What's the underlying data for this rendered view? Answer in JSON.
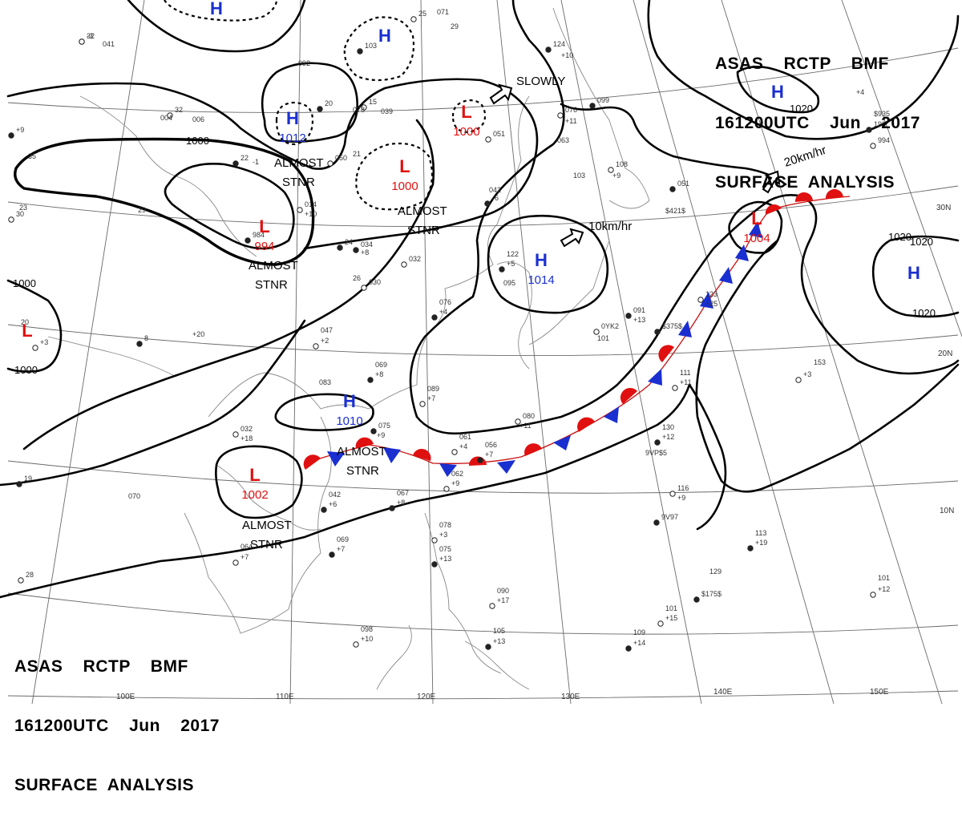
{
  "header": {
    "line1": "ASAS    RCTP    BMF",
    "line2": "161200UTC    Jun    2017",
    "line3": "SURFACE  ANALYSIS"
  },
  "colors": {
    "high": "#1a2fd0",
    "low": "#e01010",
    "isobar": "#000000",
    "grid": "#555555",
    "coast": "#808080"
  },
  "pressure_centers": [
    {
      "id": "h-top",
      "type": "H",
      "value": ""
    },
    {
      "id": "h-north",
      "type": "H",
      "value": ""
    },
    {
      "id": "h-1012",
      "type": "H",
      "value": "1012"
    },
    {
      "id": "l-1000-a",
      "type": "L",
      "value": "1000"
    },
    {
      "id": "l-1000-b",
      "type": "L",
      "value": "1000"
    },
    {
      "id": "l-994",
      "type": "L",
      "value": "994"
    },
    {
      "id": "h-1014",
      "type": "H",
      "value": "1014"
    },
    {
      "id": "h-1010",
      "type": "H",
      "value": "1010"
    },
    {
      "id": "l-1002",
      "type": "L",
      "value": "1002"
    },
    {
      "id": "l-1004",
      "type": "L",
      "value": "1004"
    },
    {
      "id": "h-east",
      "type": "H",
      "value": ""
    },
    {
      "id": "h-1020-ne",
      "type": "H",
      "value": ""
    },
    {
      "id": "l-west",
      "type": "L",
      "value": ""
    }
  ],
  "isobar_labels": [
    "1000",
    "1000",
    "1020",
    "1020",
    "1020",
    "1000",
    "1020"
  ],
  "motion_labels": [
    "SLOWLY",
    "10km/hr",
    "20km/hr"
  ],
  "stationary_labels": [
    "ALMOST",
    "STNR"
  ],
  "latitude_labels": [
    "30N",
    "20N",
    "10N"
  ],
  "longitude_labels": [
    "100E",
    "110E",
    "120E",
    "130E",
    "140E",
    "150E"
  ],
  "stations": [
    "32",
    "041",
    "32",
    "006",
    "20",
    "078",
    "15",
    "039",
    "22",
    "-1",
    "050",
    "21",
    "103",
    "092",
    "25",
    "071",
    "124",
    "+10",
    "076",
    "+11",
    "099",
    "063",
    "051",
    "042",
    "-6",
    "103",
    "108",
    "+9",
    "051",
    "$421$",
    "014",
    "+10",
    "034",
    "+8",
    "032",
    "122",
    "+5",
    "095",
    "30",
    "29",
    "24",
    "26",
    "030",
    "076",
    "+4",
    "047",
    "+2",
    "069",
    "+8",
    "089",
    "+7",
    "083",
    "075",
    "+9",
    "080",
    "+11",
    "091",
    "+13",
    "123",
    "+25",
    "$375$",
    "111",
    "+11",
    "130",
    "+12",
    "9VP$5",
    "116",
    "+9",
    "9V97",
    "153",
    "+3",
    "113",
    "+19",
    "101",
    "+12",
    "129",
    "$175$",
    "101",
    "+15",
    "109",
    "+14",
    "098",
    "+10",
    "105",
    "+13",
    "090",
    "+17",
    "075",
    "+13",
    "078",
    "+3",
    "067",
    "+8",
    "062",
    "+9",
    "056",
    "+7",
    "061",
    "+4",
    "042",
    "+6",
    "064",
    "+7",
    "069",
    "+7",
    "070",
    "032",
    "+18",
    "8",
    "+20",
    "+3",
    "35",
    "984",
    "004",
    "994",
    "$935",
    "192",
    "+4",
    "0YK2",
    "101",
    "+9",
    "20",
    "28",
    "23",
    "19",
    "29",
    "-3"
  ]
}
